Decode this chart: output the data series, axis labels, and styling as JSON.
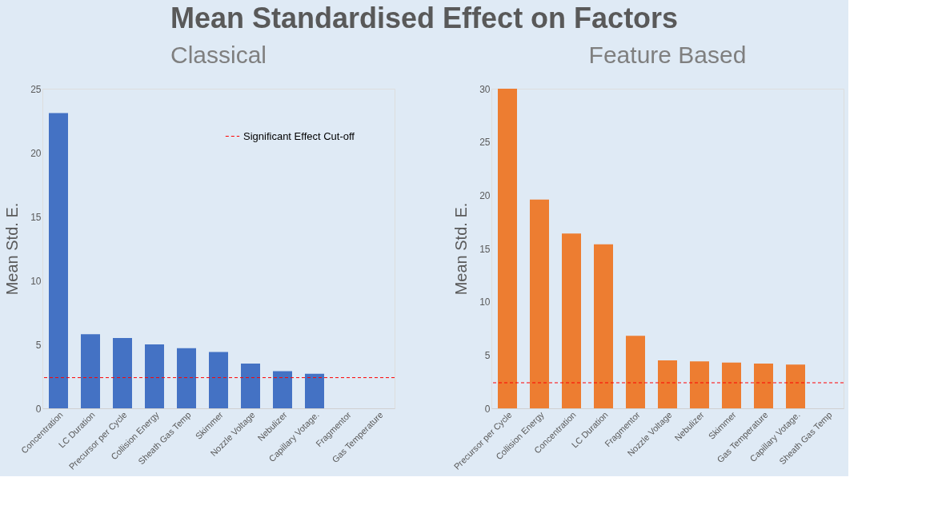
{
  "chart_data": [
    {
      "type": "bar",
      "title": "Classical",
      "ylabel": "Mean Std. E.",
      "annotations": [
        "Mean Standardised Effect on Factors"
      ],
      "categories": [
        "Concentration",
        "LC Duration",
        "Precursor per Cycle",
        "Collision Energy",
        "Sheath Gas Temp",
        "Skimmer",
        "Nozzle Voltage",
        "Nebulizer",
        "Capillary Votage.",
        "Fragmentor",
        "Gas Temperature"
      ],
      "values": [
        23.1,
        5.8,
        5.5,
        5.0,
        4.7,
        4.4,
        3.5,
        2.9,
        2.7,
        0,
        0
      ],
      "color": "#4472c4",
      "ylim": [
        0,
        25
      ],
      "yticks": [
        0,
        5,
        10,
        15,
        20,
        25
      ],
      "grid": false,
      "legend": "top right",
      "ref_lines": [
        {
          "axis": "y",
          "value": 2.4,
          "label": "Significant Effect Cut-off",
          "color": "#ff0000",
          "line_style": "dashed"
        }
      ]
    },
    {
      "type": "bar",
      "title": "Feature Based",
      "ylabel": "Mean Std. E.",
      "categories": [
        "Precursor per Cycle",
        "Collision Energy",
        "Concentration",
        "LC Duration",
        "Fragmentor",
        "Nozzle Voltage",
        "Nebulizer",
        "Skimmer",
        "Gas Temperature",
        "Capillary Votage.",
        "Sheath Gas Temp"
      ],
      "values": [
        30.0,
        19.6,
        16.4,
        15.4,
        6.8,
        4.5,
        4.4,
        4.3,
        4.2,
        4.1,
        0
      ],
      "color": "#ed7d31",
      "ylim": [
        0,
        30
      ],
      "yticks": [
        0,
        5,
        10,
        15,
        20,
        25,
        30
      ],
      "grid": false,
      "ref_lines": [
        {
          "axis": "y",
          "value": 2.4,
          "color": "#ff0000",
          "line_style": "dashed"
        }
      ]
    }
  ]
}
